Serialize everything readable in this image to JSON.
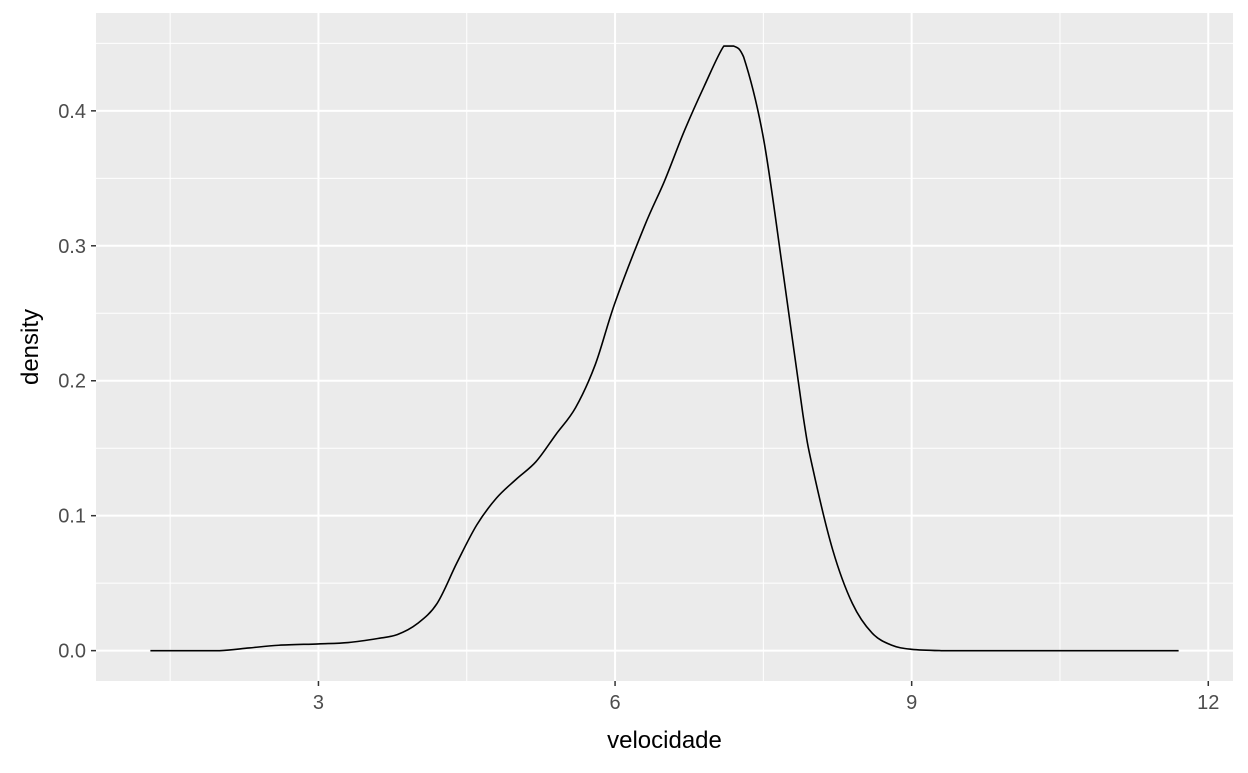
{
  "chart_data": {
    "type": "line",
    "title": "",
    "xlabel": "velocidade",
    "ylabel": "density",
    "xlim": [
      0.75,
      12.25
    ],
    "ylim": [
      -0.0225,
      0.4725
    ],
    "x_ticks": [
      3,
      6,
      9,
      12
    ],
    "x_tick_labels": [
      "3",
      "6",
      "9",
      "12"
    ],
    "x_minor_ticks": [
      1.5,
      4.5,
      7.5,
      10.5
    ],
    "y_ticks": [
      0.0,
      0.1,
      0.2,
      0.3,
      0.4
    ],
    "y_tick_labels": [
      "0.0",
      "0.1",
      "0.2",
      "0.3",
      "0.4"
    ],
    "y_minor_ticks": [
      0.05,
      0.15,
      0.25,
      0.35,
      0.45
    ],
    "grid": true,
    "legend": "none",
    "colors": {
      "panel_background": "#ebebeb",
      "grid": "#ffffff",
      "line": "#000000"
    },
    "series": [
      {
        "x": [
          1.3,
          1.6,
          2.0,
          2.3,
          2.6,
          3.0,
          3.3,
          3.6,
          3.8,
          4.0,
          4.2,
          4.4,
          4.6,
          4.8,
          5.0,
          5.2,
          5.4,
          5.6,
          5.8,
          6.0,
          6.3,
          6.5,
          6.7,
          6.9,
          7.1,
          7.2,
          7.3,
          7.5,
          7.7,
          7.9,
          8.0,
          8.2,
          8.4,
          8.6,
          8.8,
          9.0,
          9.3,
          9.6,
          10.0,
          11.0,
          11.7
        ],
        "y": [
          0.0,
          0.0,
          0.0,
          0.002,
          0.004,
          0.005,
          0.006,
          0.009,
          0.012,
          0.02,
          0.035,
          0.065,
          0.093,
          0.113,
          0.127,
          0.14,
          0.16,
          0.18,
          0.212,
          0.258,
          0.315,
          0.348,
          0.385,
          0.418,
          0.448,
          0.448,
          0.44,
          0.38,
          0.28,
          0.175,
          0.135,
          0.075,
          0.035,
          0.013,
          0.004,
          0.001,
          0.0,
          0.0,
          0.0,
          0.0,
          0.0
        ]
      }
    ]
  }
}
